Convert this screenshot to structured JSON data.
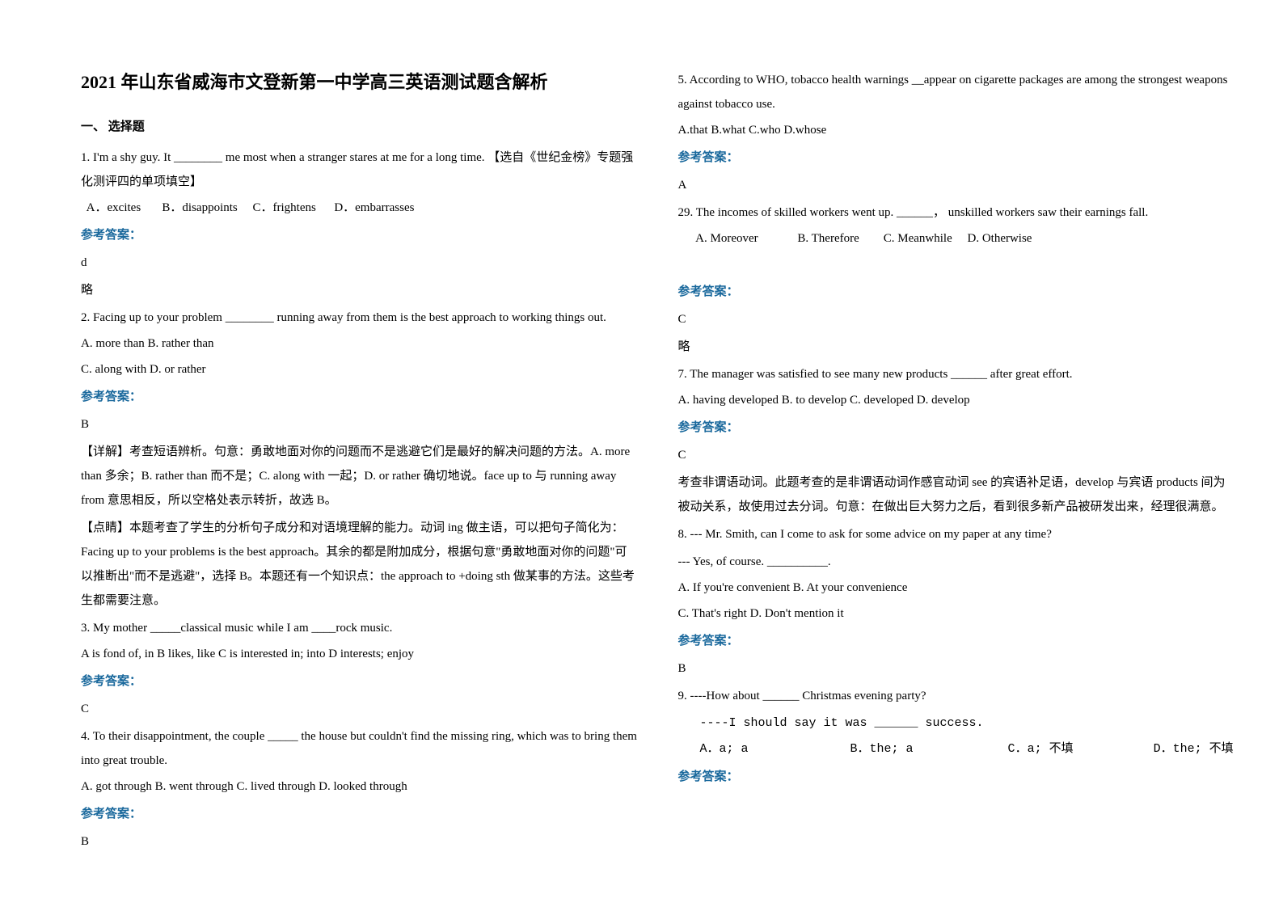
{
  "title": "2021 年山东省威海市文登新第一中学高三英语测试题含解析",
  "section1": "一、 选择题",
  "answer_label": "参考答案：",
  "q1": {
    "stem": "1. I'm a shy guy. It ________ me most when a stranger stares at me for a long time. 【选自《世纪金榜》专题强化测评四的单项填空】",
    "opts": "  A．excites       B．disappoints     C．frightens      D．embarrasses",
    "ans": "d",
    "note": "略"
  },
  "q2": {
    "stem": "2. Facing up to your problem ________ running away from them is the best approach to working things out.",
    "opta": "A. more than    B. rather than",
    "optb": "C. along with    D. or rather",
    "ans": "B",
    "exp1": "【详解】考查短语辨析。句意：勇敢地面对你的问题而不是逃避它们是最好的解决问题的方法。A. more than 多余；B. rather than 而不是；C. along with 一起；D. or rather 确切地说。face up to 与 running away from 意思相反，所以空格处表示转折，故选 B。",
    "exp2": "【点睛】本题考查了学生的分析句子成分和对语境理解的能力。动词 ing 做主语，可以把句子简化为：Facing up to your problems is the best approach。其余的都是附加成分，根据句意\"勇敢地面对你的问题\"可以推断出\"而不是逃避\"，选择 B。本题还有一个知识点：the approach to +doing sth 做某事的方法。这些考生都需要注意。"
  },
  "q3": {
    "stem": "3. My mother _____classical music while I am ____rock music.",
    "opts": "A is fond of, in        B likes, like     C is interested in; into   D interests; enjoy",
    "ans": "C"
  },
  "q4": {
    "stem": "   4. To their disappointment, the couple _____ the house but couldn't find the missing ring, which was to bring them into great trouble.",
    "opts": "A. got through    B. went through    C. lived through    D. looked through",
    "ans": "B"
  },
  "q5": {
    "stem": "5. According to WHO, tobacco health warnings __appear on cigarette packages are among the strongest weapons against tobacco use.",
    "opts": "A.that   B.what  C.who   D.whose",
    "ans": "A"
  },
  "q6": {
    "stem": "29. The incomes of skilled workers went up. ______， unskilled workers saw their earnings fall.",
    "opts": "      A. Moreover             B. Therefore        C. Meanwhile     D. Otherwise",
    "ans": "C",
    "note": "略"
  },
  "q7": {
    "stem": "7. The manager was satisfied to see many new products ______ after great effort.",
    "opts": "A. having developed      B. to develop     C. developed     D. develop",
    "ans": "C",
    "exp": "考查非谓语动词。此题考查的是非谓语动词作感官动词 see 的宾语补足语，develop 与宾语 products 间为被动关系，故使用过去分词。句意：在做出巨大努力之后，看到很多新产品被研发出来，经理很满意。"
  },
  "q8": {
    "stem1": "8. --- Mr. Smith, can I come to ask for some advice on my paper at any time?",
    "stem2": "--- Yes, of course. __________.",
    "opta": "A. If you're convenient                B. At your convenience",
    "optb": "C. That's right                             D. Don't mention it",
    "ans": "B"
  },
  "q9": {
    "stem1": "9. ----How about ______ Christmas evening party?",
    "stem2": "   ----I should say it was ______ success.",
    "opts": "   A．a; a              B．the; a             C．a; 不填           D．the; 不填"
  }
}
